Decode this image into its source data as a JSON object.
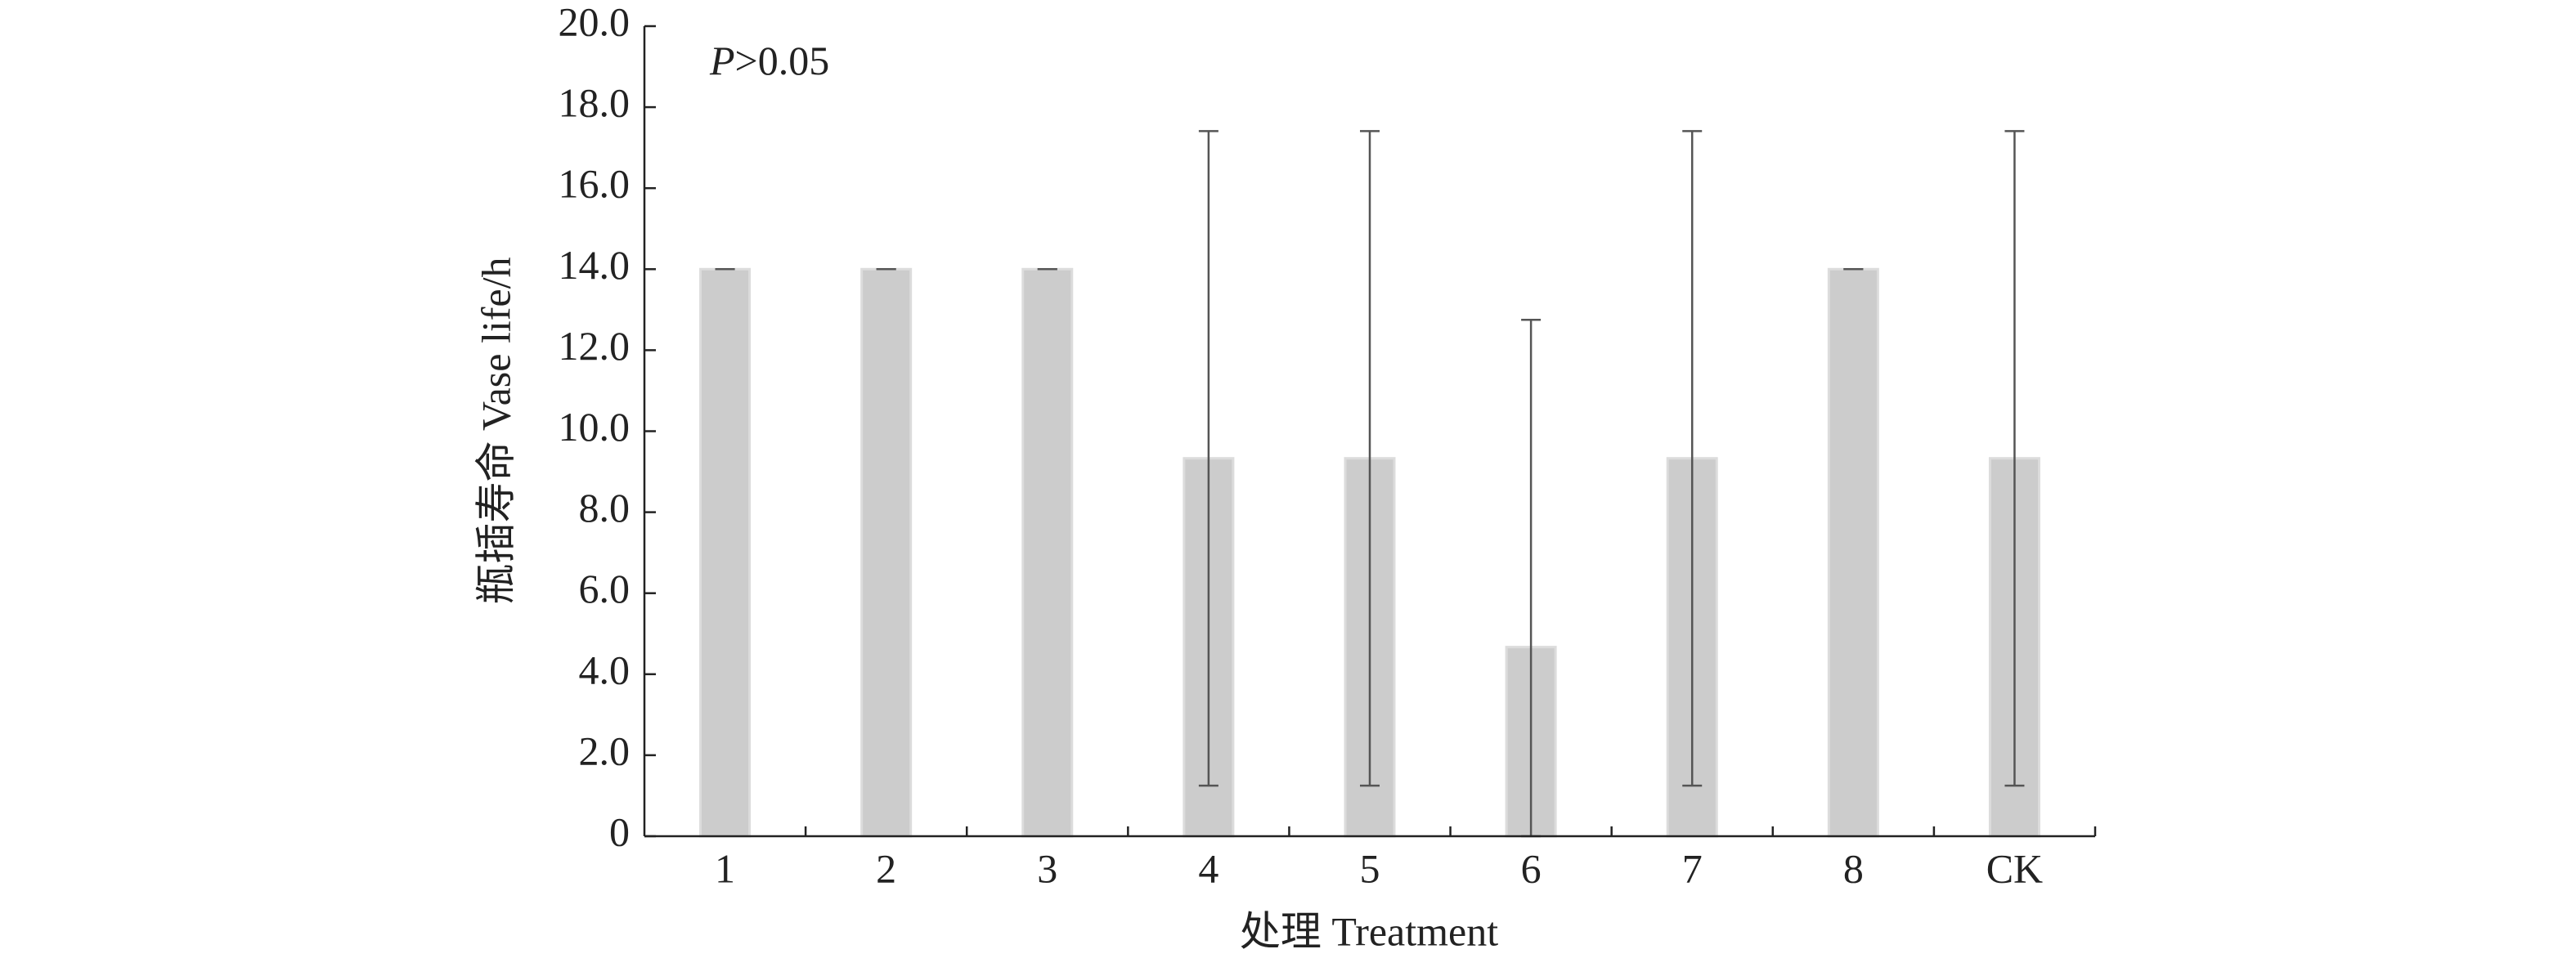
{
  "chart_data": {
    "type": "bar",
    "annotation": [
      "P",
      ">0.05"
    ],
    "x_label": "处理 Treatment",
    "y_label": "瓶插寿命 Vase life/h",
    "categories": [
      "1",
      "2",
      "3",
      "4",
      "5",
      "6",
      "7",
      "8",
      "CK"
    ],
    "values": [
      14.0,
      14.0,
      14.0,
      9.33,
      9.33,
      4.67,
      9.33,
      14.0,
      9.33
    ],
    "errors": [
      0,
      0,
      0,
      8.08,
      8.08,
      8.08,
      8.08,
      0,
      8.08
    ],
    "color": "#cccccc",
    "ylim": [
      0,
      20
    ],
    "yticks": [
      0,
      {
        "value": 2,
        "label": "2.0"
      },
      {
        "value": 4,
        "label": "4.0"
      },
      {
        "value": 6,
        "label": "6.0"
      },
      {
        "value": 8,
        "label": "8.0"
      },
      {
        "value": 10,
        "label": "10.0"
      },
      {
        "value": 12,
        "label": "12.0"
      },
      {
        "value": 14,
        "label": "14.0"
      },
      {
        "value": 16,
        "label": "16.0"
      },
      {
        "value": 18,
        "label": "18.0"
      },
      {
        "value": 20,
        "label": "20.0"
      }
    ],
    "grid": false
  }
}
